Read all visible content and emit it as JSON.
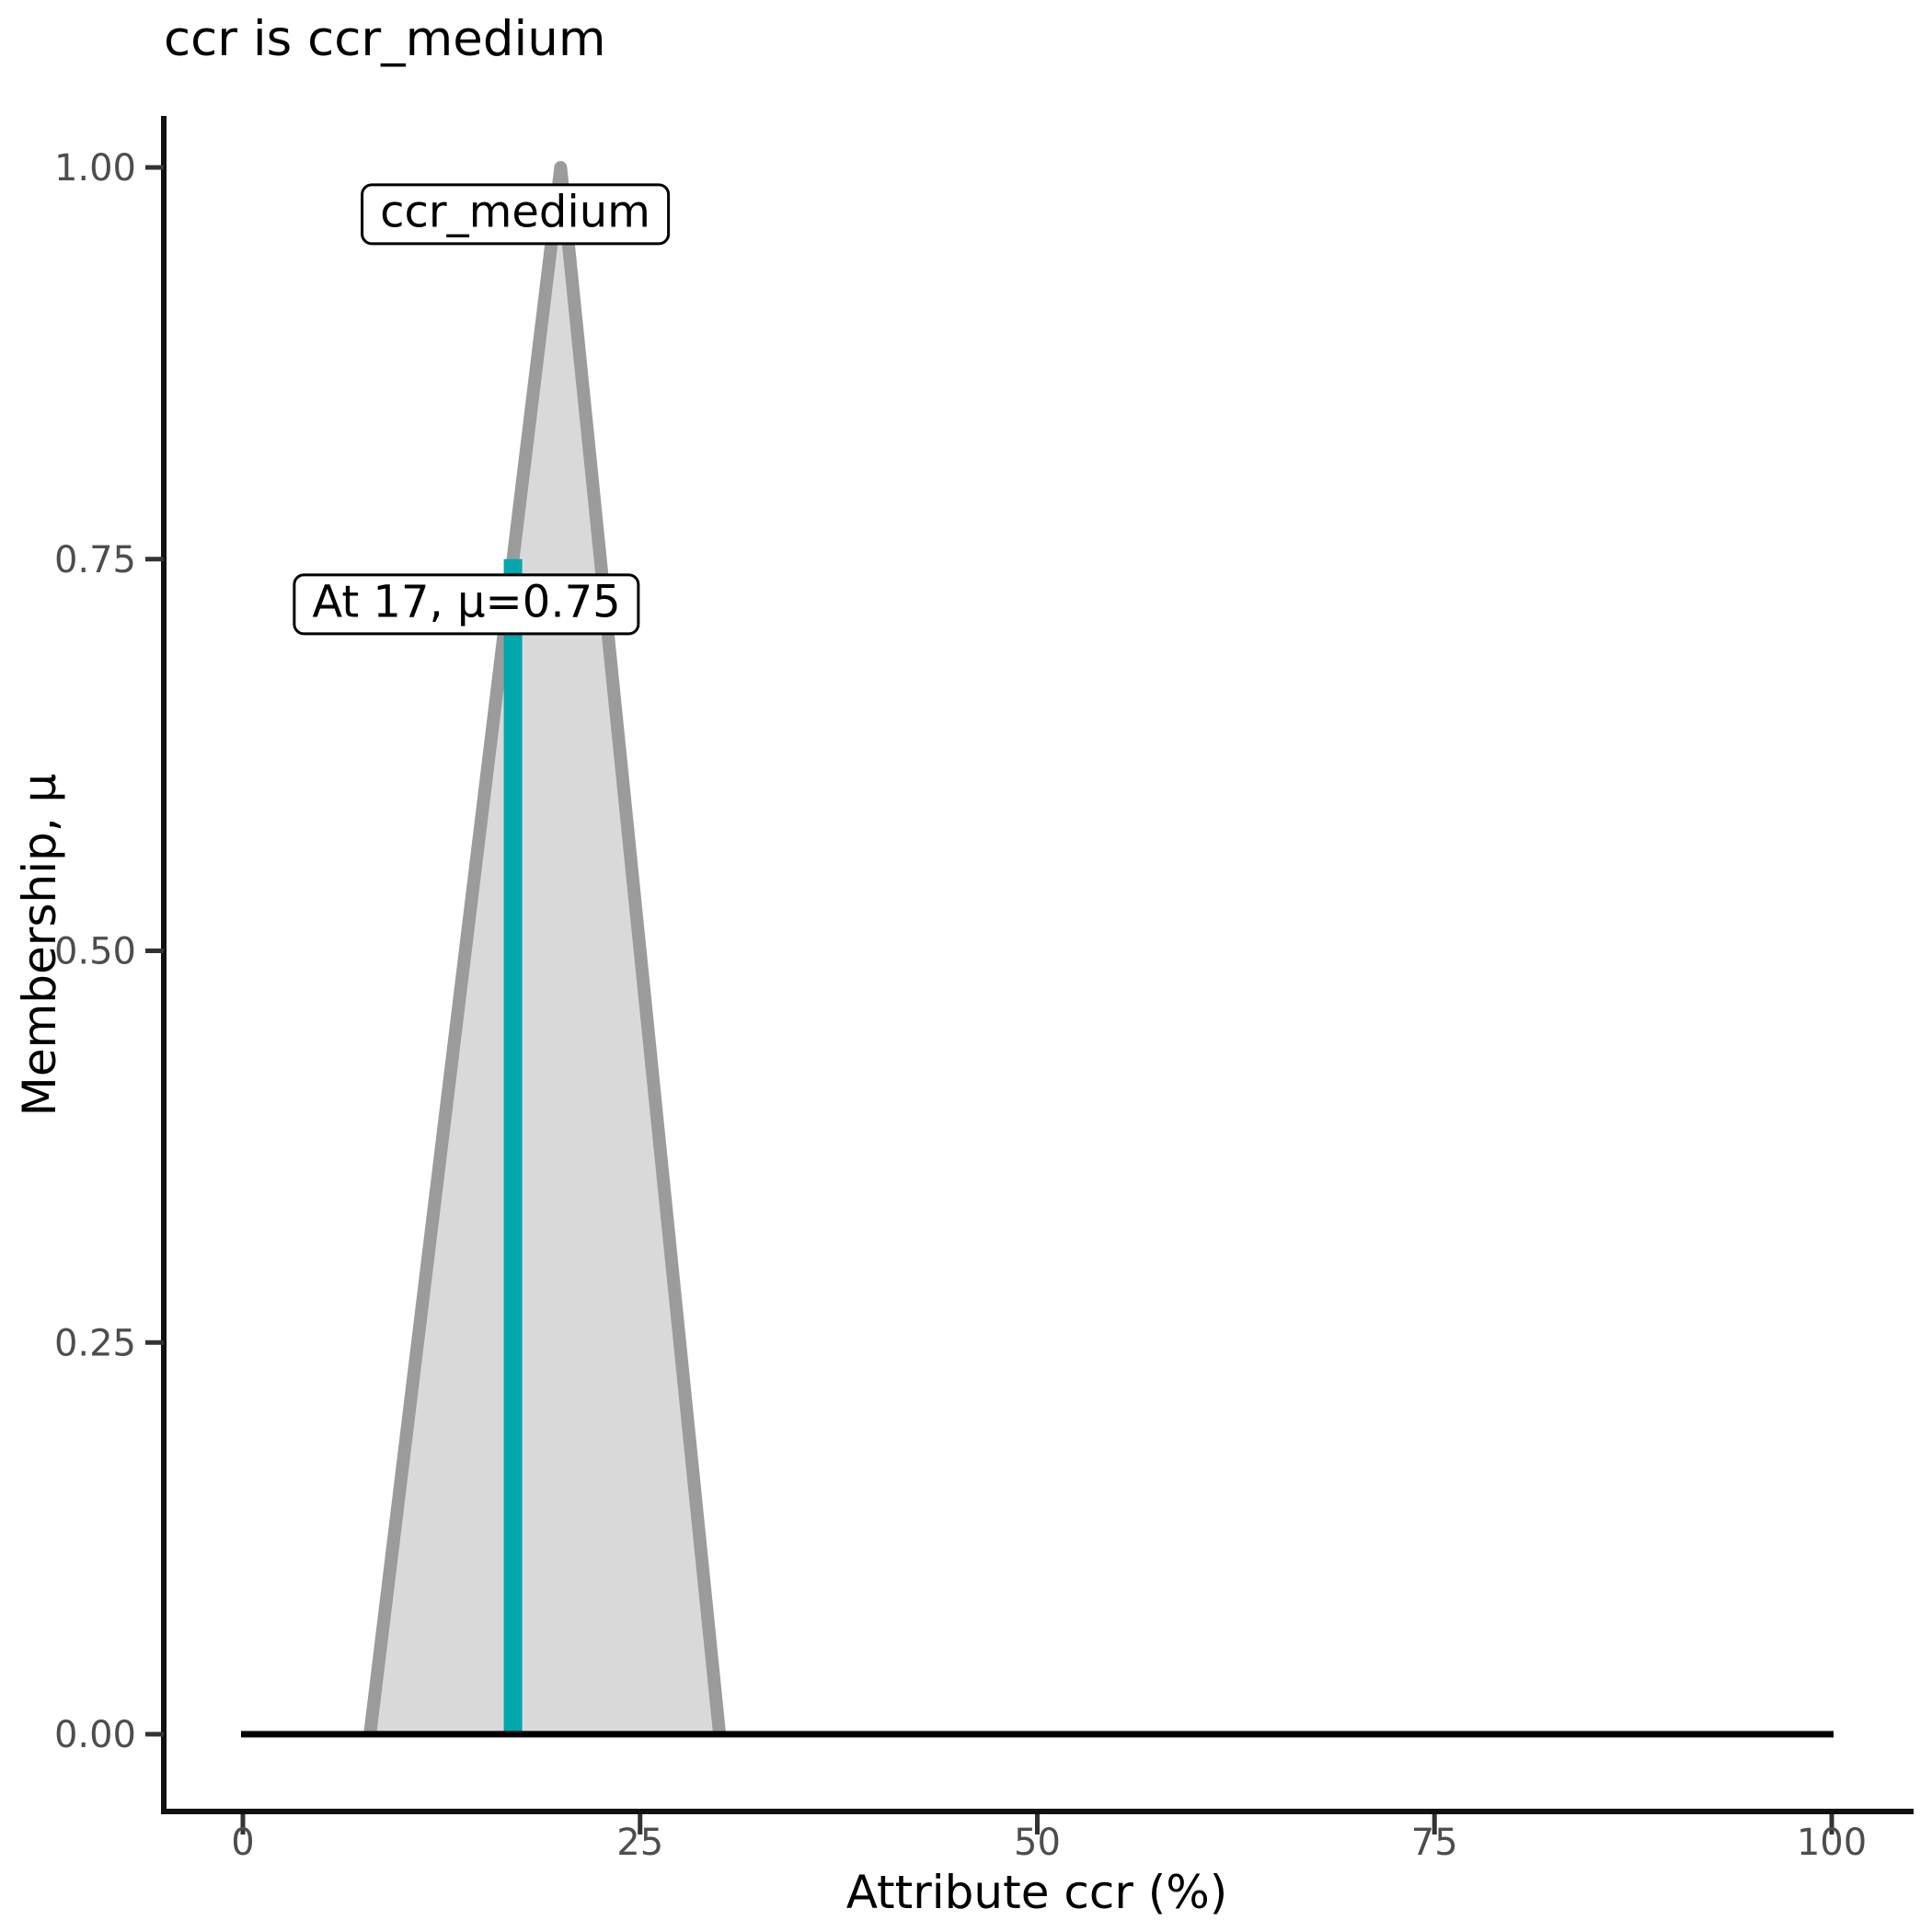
{
  "chart_data": {
    "type": "area",
    "title": "ccr is ccr_medium",
    "xlabel": "Attribute ccr (%)",
    "ylabel": "Membership, μ",
    "xlim": [
      0,
      100
    ],
    "ylim": [
      0,
      1
    ],
    "grid": false,
    "legend": false,
    "series": [
      {
        "name": "ccr_medium",
        "shape": "triangular-membership-function",
        "points": [
          [
            0,
            0
          ],
          [
            8,
            0
          ],
          [
            20,
            1
          ],
          [
            30,
            0
          ],
          [
            100,
            0
          ]
        ]
      }
    ],
    "marker": {
      "x": 17,
      "mu": 0.75
    },
    "x_ticks": [
      {
        "v": 0,
        "label": "0"
      },
      {
        "v": 25,
        "label": "25"
      },
      {
        "v": 50,
        "label": "50"
      },
      {
        "v": 75,
        "label": "75"
      },
      {
        "v": 100,
        "label": "100"
      }
    ],
    "y_ticks": [
      {
        "v": 0,
        "label": "0.00"
      },
      {
        "v": 0.25,
        "label": "0.25"
      },
      {
        "v": 0.5,
        "label": "0.50"
      },
      {
        "v": 0.75,
        "label": "0.75"
      },
      {
        "v": 1,
        "label": "1.00"
      }
    ],
    "annotations": [
      {
        "text": "ccr_medium"
      },
      {
        "text": "At 17, μ=0.75"
      }
    ],
    "colors": {
      "marker": "#00A7AB",
      "mf_fill": "#D9D9D9",
      "mf_stroke": "#9B9B9B",
      "axis_text": "#4D4D4D",
      "baseline": "#000000",
      "spine": "#111111",
      "tick": "#333333"
    }
  }
}
